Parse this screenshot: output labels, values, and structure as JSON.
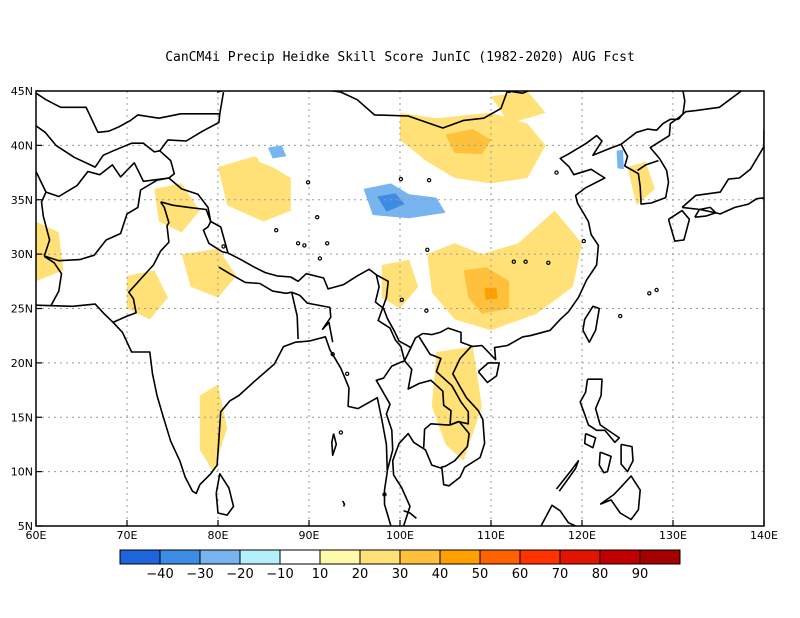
{
  "title": "CanCM4i Precip Heidke Skill Score JunIC (1982-2020) AUG Fcst",
  "map": {
    "lon_range": [
      60,
      140
    ],
    "lat_range": [
      5,
      45
    ],
    "lon_ticks": [
      {
        "value": 60,
        "label": "60E"
      },
      {
        "value": 70,
        "label": "70E"
      },
      {
        "value": 80,
        "label": "80E"
      },
      {
        "value": 90,
        "label": "90E"
      },
      {
        "value": 100,
        "label": "100E"
      },
      {
        "value": 110,
        "label": "110E"
      },
      {
        "value": 120,
        "label": "120E"
      },
      {
        "value": 130,
        "label": "130E"
      },
      {
        "value": 140,
        "label": "140E"
      }
    ],
    "lat_ticks": [
      {
        "value": 5,
        "label": "5N"
      },
      {
        "value": 10,
        "label": "10N"
      },
      {
        "value": 15,
        "label": "15N"
      },
      {
        "value": 20,
        "label": "20N"
      },
      {
        "value": 25,
        "label": "25N"
      },
      {
        "value": 30,
        "label": "30N"
      },
      {
        "value": 35,
        "label": "35N"
      },
      {
        "value": 40,
        "label": "40N"
      },
      {
        "value": 45,
        "label": "45N"
      }
    ],
    "grid": "dotted"
  },
  "colorbar": {
    "colors": [
      "#1e64dc",
      "#3c8ce6",
      "#78b4f0",
      "#b4f0fa",
      "#ffffff",
      "#fffaaa",
      "#ffe178",
      "#ffc03c",
      "#ffa000",
      "#ff6000",
      "#ff3200",
      "#e11400",
      "#c00000",
      "#a50000"
    ],
    "labels": [
      "-40",
      "-30",
      "-20",
      "-10",
      "10",
      "20",
      "30",
      "40",
      "50",
      "60",
      "70",
      "80",
      "90"
    ]
  },
  "chart_data": {
    "type": "heatmap",
    "title": "CanCM4i Precip Heidke Skill Score JunIC (1982-2020) AUG Fcst",
    "xlabel": "",
    "ylabel": "",
    "x_range": [
      60,
      140
    ],
    "y_range": [
      5,
      45
    ],
    "levels": [
      -40,
      -30,
      -20,
      -10,
      10,
      20,
      30,
      40,
      50,
      60,
      70,
      80,
      90
    ],
    "features": [
      {
        "lon": 107.5,
        "lat": 40,
        "value": 30
      },
      {
        "lon": 110,
        "lat": 26.5,
        "value": 40
      },
      {
        "lon": 110,
        "lat": 26,
        "value": 30
      },
      {
        "lon": 106,
        "lat": 28,
        "value": 20
      },
      {
        "lon": 115,
        "lat": 32,
        "value": 20
      },
      {
        "lon": 84,
        "lat": 36,
        "value": 20
      },
      {
        "lon": 62,
        "lat": 30,
        "value": 20
      },
      {
        "lon": 79,
        "lat": 16,
        "value": 20
      },
      {
        "lon": 99,
        "lat": 34.5,
        "value": -30
      },
      {
        "lon": 103,
        "lat": 34.5,
        "value": -20
      },
      {
        "lon": 96,
        "lat": 36,
        "value": -10
      },
      {
        "lon": 86,
        "lat": 39,
        "value": -20
      },
      {
        "lon": 124,
        "lat": 39,
        "value": -20
      },
      {
        "lon": 100,
        "lat": 44,
        "value": -10
      },
      {
        "lon": 87,
        "lat": 26,
        "value": -10
      },
      {
        "lon": 100,
        "lat": 19,
        "value": -10
      },
      {
        "lon": 106,
        "lat": 19,
        "value": 20
      },
      {
        "lon": 107,
        "lat": 13,
        "value": 20
      }
    ]
  }
}
